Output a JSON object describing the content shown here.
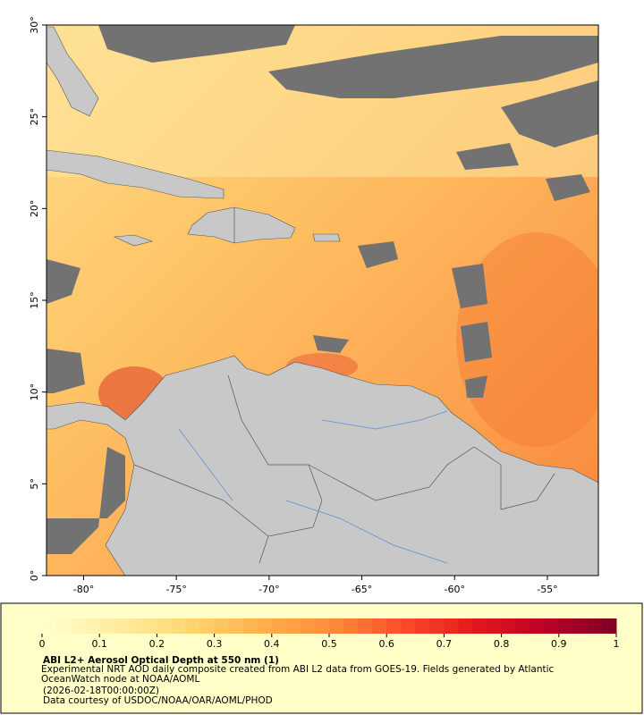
{
  "chart_data": {
    "type": "map",
    "title": "ABI L2+ Aerosol Optical Depth at 550 nm (1)",
    "description": "Experimental NRT AOD daily composite created from ABI L2 data from GOES-19. Fields generated by Atlantic OceanWatch node at NOAA/AOML",
    "timestamp": "(2026-02-18T00:00:00Z)",
    "credit": "Data courtesy of USDOC/NOAA/OAR/AOML/PHOD",
    "xlim": [
      -82,
      -52.25
    ],
    "ylim": [
      0,
      30
    ],
    "xticks": [
      {
        "value": -80,
        "label": "-80°"
      },
      {
        "value": -75,
        "label": "-75°"
      },
      {
        "value": -70,
        "label": "-70°"
      },
      {
        "value": -65,
        "label": "-65°"
      },
      {
        "value": -60,
        "label": "-60°"
      },
      {
        "value": -55,
        "label": "-55°"
      }
    ],
    "yticks": [
      {
        "value": 0,
        "label": "0°"
      },
      {
        "value": 5,
        "label": "5°"
      },
      {
        "value": 10,
        "label": "10°"
      },
      {
        "value": 15,
        "label": "15°"
      },
      {
        "value": 20,
        "label": "20°"
      },
      {
        "value": 25,
        "label": "25°"
      },
      {
        "value": 30,
        "label": "30°"
      }
    ],
    "colorbar": {
      "lim": [
        0,
        1
      ],
      "ticks": [
        0,
        0.1,
        0.2,
        0.3,
        0.4,
        0.5,
        0.6,
        0.7,
        0.8,
        0.9,
        1
      ],
      "colors": [
        "#ffffd0",
        "#ffeda0",
        "#fed976",
        "#feb24c",
        "#fd8d3c",
        "#fc4e2a",
        "#e31a1c",
        "#bd0026",
        "#800026"
      ]
    }
  }
}
